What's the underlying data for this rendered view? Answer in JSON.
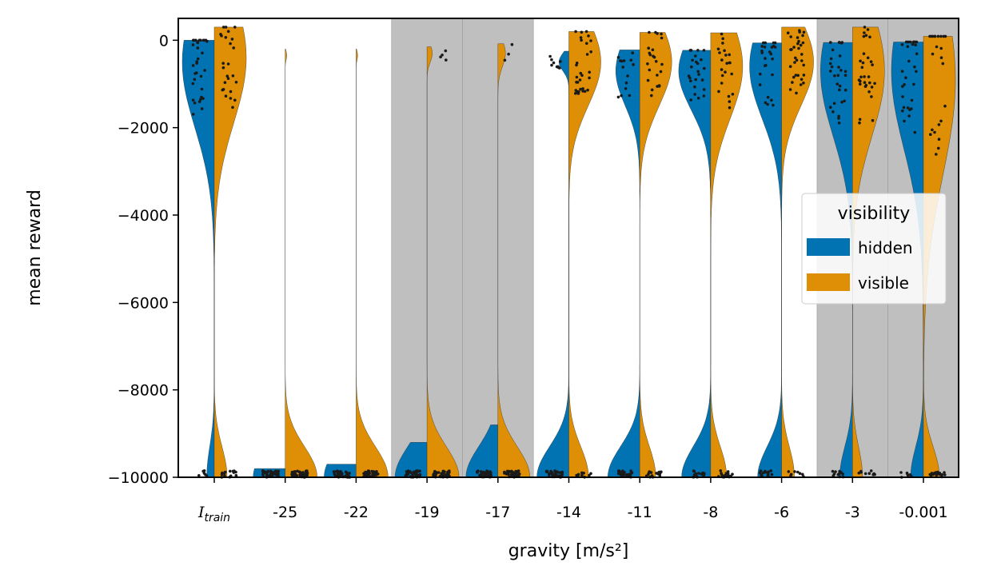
{
  "chart_data": {
    "type": "violin",
    "xlabel": "gravity [m/s²]",
    "ylabel": "mean reward",
    "categories": [
      "I_train",
      "-25",
      "-22",
      "-19",
      "-17",
      "-14",
      "-11",
      "-8",
      "-6",
      "-3",
      "-0.001"
    ],
    "category_display": {
      "I_train": {
        "main": "I",
        "sub": "train"
      }
    },
    "ylim": [
      -10000,
      500
    ],
    "yticks": [
      0,
      -2000,
      -4000,
      -6000,
      -8000,
      -10000
    ],
    "ytick_labels": [
      "0",
      "−2000",
      "−4000",
      "−6000",
      "−8000",
      "−10000"
    ],
    "shaded_categories": [
      "-19",
      "-17",
      "-3",
      "-0.001"
    ],
    "legend": {
      "title": "visibility",
      "position": "right"
    },
    "colors": {
      "hidden": "#0173b2",
      "visible": "#de8f05",
      "shade": "#bfbfbf",
      "points": "#1a1a1a"
    },
    "series": [
      {
        "name": "hidden",
        "side": "left",
        "distributions": [
          {
            "category": "I_train",
            "top": 0,
            "bulk_mean": -500,
            "spread": 1500,
            "low_mass": 0.2
          },
          {
            "category": "-25",
            "top": -9800,
            "bulk_mean": -400,
            "spread": 100,
            "low_mass": 1.0
          },
          {
            "category": "-22",
            "top": -9700,
            "bulk_mean": -350,
            "spread": 100,
            "low_mass": 1.0
          },
          {
            "category": "-19",
            "top": -9200,
            "bulk_mean": -350,
            "spread": 100,
            "low_mass": 1.0
          },
          {
            "category": "-17",
            "top": -8800,
            "bulk_mean": -500,
            "spread": 200,
            "low_mass": 1.0
          },
          {
            "category": "-14",
            "top": -250,
            "bulk_mean": -500,
            "spread": 200,
            "low_mass": 0.8
          },
          {
            "category": "-11",
            "top": -220,
            "bulk_mean": -700,
            "spread": 800,
            "low_mass": 0.6
          },
          {
            "category": "-8",
            "top": -230,
            "bulk_mean": -700,
            "spread": 900,
            "low_mass": 0.5
          },
          {
            "category": "-6",
            "top": -60,
            "bulk_mean": -600,
            "spread": 1200,
            "low_mass": 0.45
          },
          {
            "category": "-3",
            "top": -50,
            "bulk_mean": -700,
            "spread": 1500,
            "low_mass": 0.3
          },
          {
            "category": "-0.001",
            "top": -40,
            "bulk_mean": -700,
            "spread": 1800,
            "low_mass": 0.3
          }
        ]
      },
      {
        "name": "visible",
        "side": "right",
        "distributions": [
          {
            "category": "I_train",
            "top": 300,
            "bulk_mean": -400,
            "spread": 1500,
            "low_mass": 0.3
          },
          {
            "category": "-25",
            "top": -200,
            "bulk_mean": -350,
            "spread": 100,
            "low_mass": 1.0
          },
          {
            "category": "-22",
            "top": -200,
            "bulk_mean": -350,
            "spread": 100,
            "low_mass": 1.0
          },
          {
            "category": "-19",
            "top": -150,
            "bulk_mean": -300,
            "spread": 200,
            "low_mass": 0.9
          },
          {
            "category": "-17",
            "top": -80,
            "bulk_mean": -300,
            "spread": 300,
            "low_mass": 0.85
          },
          {
            "category": "-14",
            "top": 200,
            "bulk_mean": -500,
            "spread": 1000,
            "low_mass": 0.4
          },
          {
            "category": "-11",
            "top": 180,
            "bulk_mean": -500,
            "spread": 1000,
            "low_mass": 0.35
          },
          {
            "category": "-8",
            "top": 170,
            "bulk_mean": -600,
            "spread": 1200,
            "low_mass": 0.35
          },
          {
            "category": "-6",
            "top": 300,
            "bulk_mean": -500,
            "spread": 1000,
            "low_mass": 0.3
          },
          {
            "category": "-3",
            "top": 300,
            "bulk_mean": -700,
            "spread": 1500,
            "low_mass": 0.25
          },
          {
            "category": "-0.001",
            "top": 90,
            "bulk_mean": -900,
            "spread": 2200,
            "low_mass": 0.35
          }
        ]
      }
    ]
  }
}
